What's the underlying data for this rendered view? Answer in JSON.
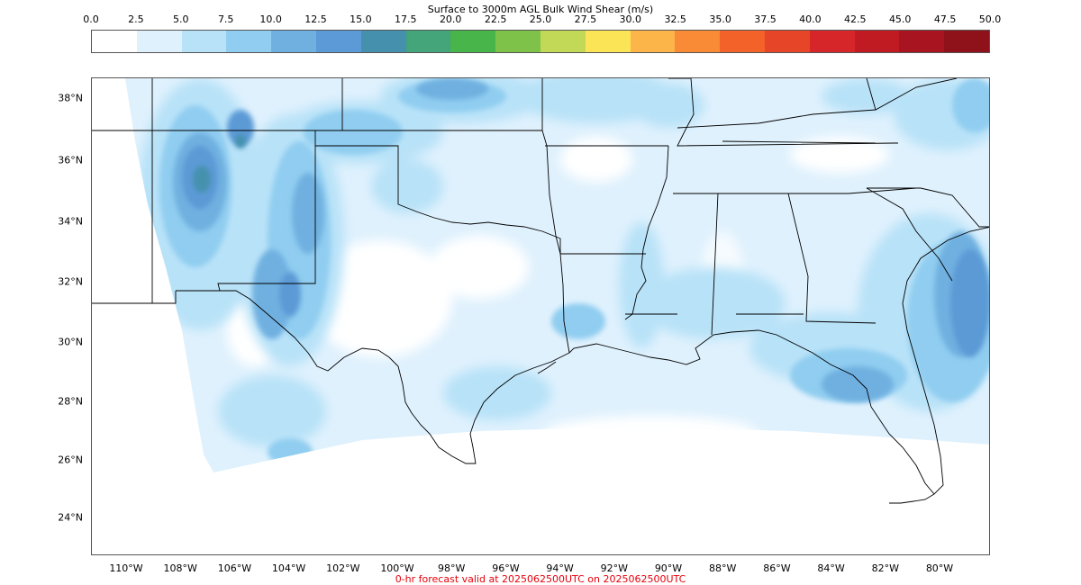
{
  "colorbar": {
    "title": "Surface to 3000m AGL Bulk Wind Shear (m/s)",
    "ticks": [
      "0.0",
      "2.5",
      "5.0",
      "7.5",
      "10.0",
      "12.5",
      "15.0",
      "17.5",
      "20.0",
      "22.5",
      "25.0",
      "27.5",
      "30.0",
      "32.5",
      "35.0",
      "37.5",
      "40.0",
      "42.5",
      "45.0",
      "47.5",
      "50.0"
    ],
    "colors": [
      "#ffffff",
      "#dff1fd",
      "#b8e2f8",
      "#90cdf0",
      "#6fb0e0",
      "#5b9ad6",
      "#4591ad",
      "#44a47a",
      "#47b54a",
      "#7fc24a",
      "#c2d957",
      "#fbe556",
      "#fbb549",
      "#f98a36",
      "#f26229",
      "#e64528",
      "#d7262a",
      "#c01a23",
      "#a81520",
      "#8f1119"
    ]
  },
  "map": {
    "lat_labels": [
      "38°N",
      "36°N",
      "34°N",
      "32°N",
      "30°N",
      "28°N",
      "26°N",
      "24°N"
    ],
    "lon_labels": [
      "110°W",
      "108°W",
      "106°W",
      "104°W",
      "102°W",
      "100°W",
      "98°W",
      "96°W",
      "94°W",
      "92°W",
      "90°W",
      "88°W",
      "86°W",
      "84°W",
      "82°W",
      "80°W"
    ]
  },
  "footer": {
    "text": "0-hr forecast valid at 2025062500UTC on 2025062500UTC"
  }
}
